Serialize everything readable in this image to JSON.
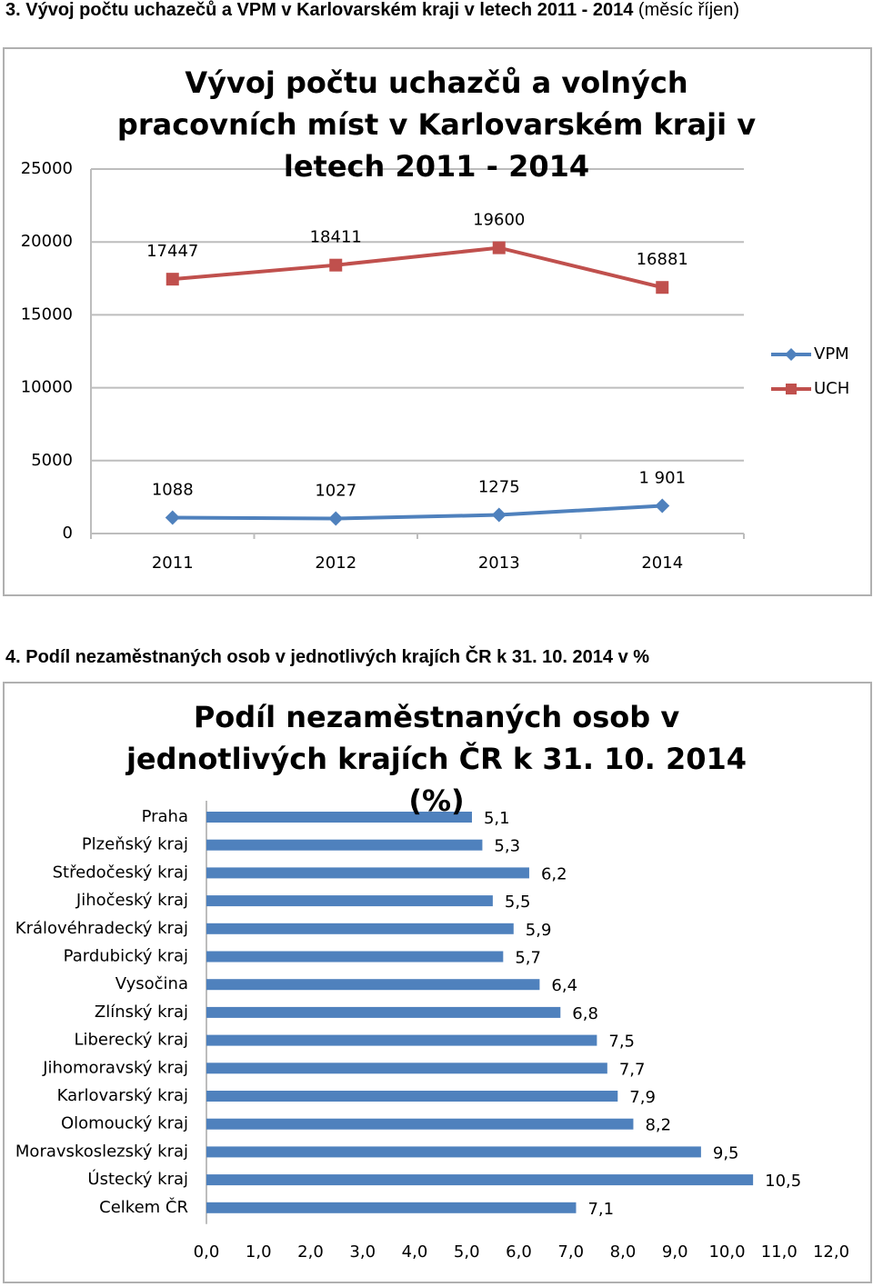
{
  "headings": [
    {
      "text": "3. Vývoj počtu uchazečů a VPM v Karlovarském kraji v letech 2011 - 2014",
      "note": "(měsíc říjen)"
    },
    {
      "text": "4. Podíl nezaměstnaných osob v jednotlivých krajích ČR k 31. 10. 2014 v %"
    }
  ],
  "chart_data": [
    {
      "type": "line",
      "title": "Vývoj počtu uchazčů a volných pracovních míst v Karlovarském kraji v letech 2011 - 2014",
      "categories": [
        "2011",
        "2012",
        "2013",
        "2014"
      ],
      "series": [
        {
          "name": "VPM",
          "color": "#4f81bd",
          "marker": "diamond",
          "values": [
            1088,
            1027,
            1275,
            1901
          ],
          "value_labels": [
            "1088",
            "1027",
            "1275",
            "1 901"
          ]
        },
        {
          "name": "UCH",
          "color": "#c0504d",
          "marker": "square",
          "values": [
            17447,
            18411,
            19600,
            16881
          ]
        }
      ],
      "ylim": [
        0,
        25000
      ],
      "yticks": [
        0,
        5000,
        10000,
        15000,
        20000,
        25000
      ],
      "grid": true,
      "legend": "right"
    },
    {
      "type": "hbar",
      "title": "Podíl nezaměstnaných osob v jednotlivých krajích ČR k 31. 10. 2014 (%)",
      "categories": [
        "Praha",
        "Plzeňský kraj",
        "Středočeský kraj",
        "Jihočeský kraj",
        "Královéhradecký kraj",
        "Pardubický kraj",
        "Vysočina",
        "Zlínský kraj",
        "Liberecký kraj",
        "Jihomoravský kraj",
        "Karlovarský kraj",
        "Olomoucký kraj",
        "Moravskoslezský kraj",
        "Ústecký kraj",
        "Celkem ČR"
      ],
      "values": [
        5.1,
        5.3,
        6.2,
        5.5,
        5.9,
        5.7,
        6.4,
        6.8,
        7.5,
        7.7,
        7.9,
        8.2,
        9.5,
        10.5,
        7.1
      ],
      "value_labels": [
        "5,1",
        "5,3",
        "6,2",
        "5,5",
        "5,9",
        "5,7",
        "6,4",
        "6,8",
        "7,5",
        "7,7",
        "7,9",
        "8,2",
        "9,5",
        "10,5",
        "7,1"
      ],
      "color": "#4f81bd",
      "xlim": [
        0,
        12
      ],
      "xticks": [
        {
          "value": 0,
          "label": "0,0"
        },
        {
          "value": 1,
          "label": "1,0"
        },
        {
          "value": 2,
          "label": "2,0"
        },
        {
          "value": 3,
          "label": "3,0"
        },
        {
          "value": 4,
          "label": "4,0"
        },
        {
          "value": 5,
          "label": "5,0"
        },
        {
          "value": 6,
          "label": "6,0"
        },
        {
          "value": 7,
          "label": "7,0"
        },
        {
          "value": 8,
          "label": "8,0"
        },
        {
          "value": 9,
          "label": "9,0"
        },
        {
          "value": 10,
          "label": "10,0"
        },
        {
          "value": 11,
          "label": "11,0"
        },
        {
          "value": 12,
          "label": "12,0"
        }
      ],
      "grid": false
    }
  ]
}
